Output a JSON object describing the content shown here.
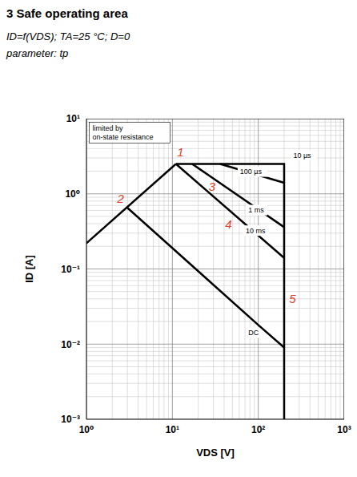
{
  "chart_data": {
    "type": "line",
    "title": "3 Safe operating area",
    "subtitle": [
      "ID=f(VDS); TA=25 °C; D=0",
      "parameter: tp"
    ],
    "x_label": "VDS [V]",
    "y_label": "ID [A]",
    "log": true,
    "grid": true,
    "xlim": [
      1,
      1000
    ],
    "ylim": [
      0.001,
      10
    ],
    "xticks": [
      {
        "value": 1,
        "label": "10⁰"
      },
      {
        "value": 10,
        "label": "10¹"
      },
      {
        "value": 100,
        "label": "10²"
      },
      {
        "value": 1000,
        "label": "10³"
      }
    ],
    "yticks": [
      {
        "value": 0.001,
        "label": "10⁻³"
      },
      {
        "value": 0.01,
        "label": "10⁻²"
      },
      {
        "value": 0.1,
        "label": "10⁻¹"
      },
      {
        "value": 1,
        "label": "10⁰"
      },
      {
        "value": 10,
        "label": "10¹"
      }
    ],
    "series": [
      {
        "color": "#000000",
        "x": [
          1,
          11
        ],
        "values": [
          0.22,
          2.5
        ]
      },
      {
        "color": "#000000",
        "x": [
          11,
          200,
          200
        ],
        "values": [
          2.5,
          2.5,
          0.001
        ]
      },
      {
        "color": "#000000",
        "x": [
          36,
          200
        ],
        "values": [
          2.5,
          1.4
        ]
      },
      {
        "color": "#000000",
        "x": [
          17,
          200
        ],
        "values": [
          2.5,
          0.36
        ]
      },
      {
        "color": "#000000",
        "x": [
          11,
          200
        ],
        "values": [
          2.5,
          0.14
        ]
      },
      {
        "color": "#000000",
        "x": [
          3,
          100,
          200
        ],
        "values": [
          0.65,
          0.018,
          0.009
        ]
      }
    ],
    "annotations": [
      {
        "text": "limited by on-state resistance",
        "x": 1.08,
        "y": 8.5
      },
      {
        "text": "10 µs",
        "x": 250,
        "y": 3.2
      },
      {
        "text": "100 µs",
        "x": 60,
        "y": 1.95
      },
      {
        "text": "1 ms",
        "x": 75,
        "y": 0.6
      },
      {
        "text": "10 ms",
        "x": 70,
        "y": 0.32
      },
      {
        "text": "DC",
        "x": 75,
        "y": 0.014
      },
      {
        "text": "1",
        "x": 12.4,
        "y": 3.5,
        "color": "#e0402c"
      },
      {
        "text": "2",
        "x": 2.5,
        "y": 0.83,
        "color": "#e0402c"
      },
      {
        "text": "3",
        "x": 29,
        "y": 1.2,
        "color": "#e0402c"
      },
      {
        "text": "4",
        "x": 45,
        "y": 0.38,
        "color": "#e0402c"
      },
      {
        "text": "5",
        "x": 250,
        "y": 0.039,
        "color": "#e0402c"
      }
    ]
  }
}
